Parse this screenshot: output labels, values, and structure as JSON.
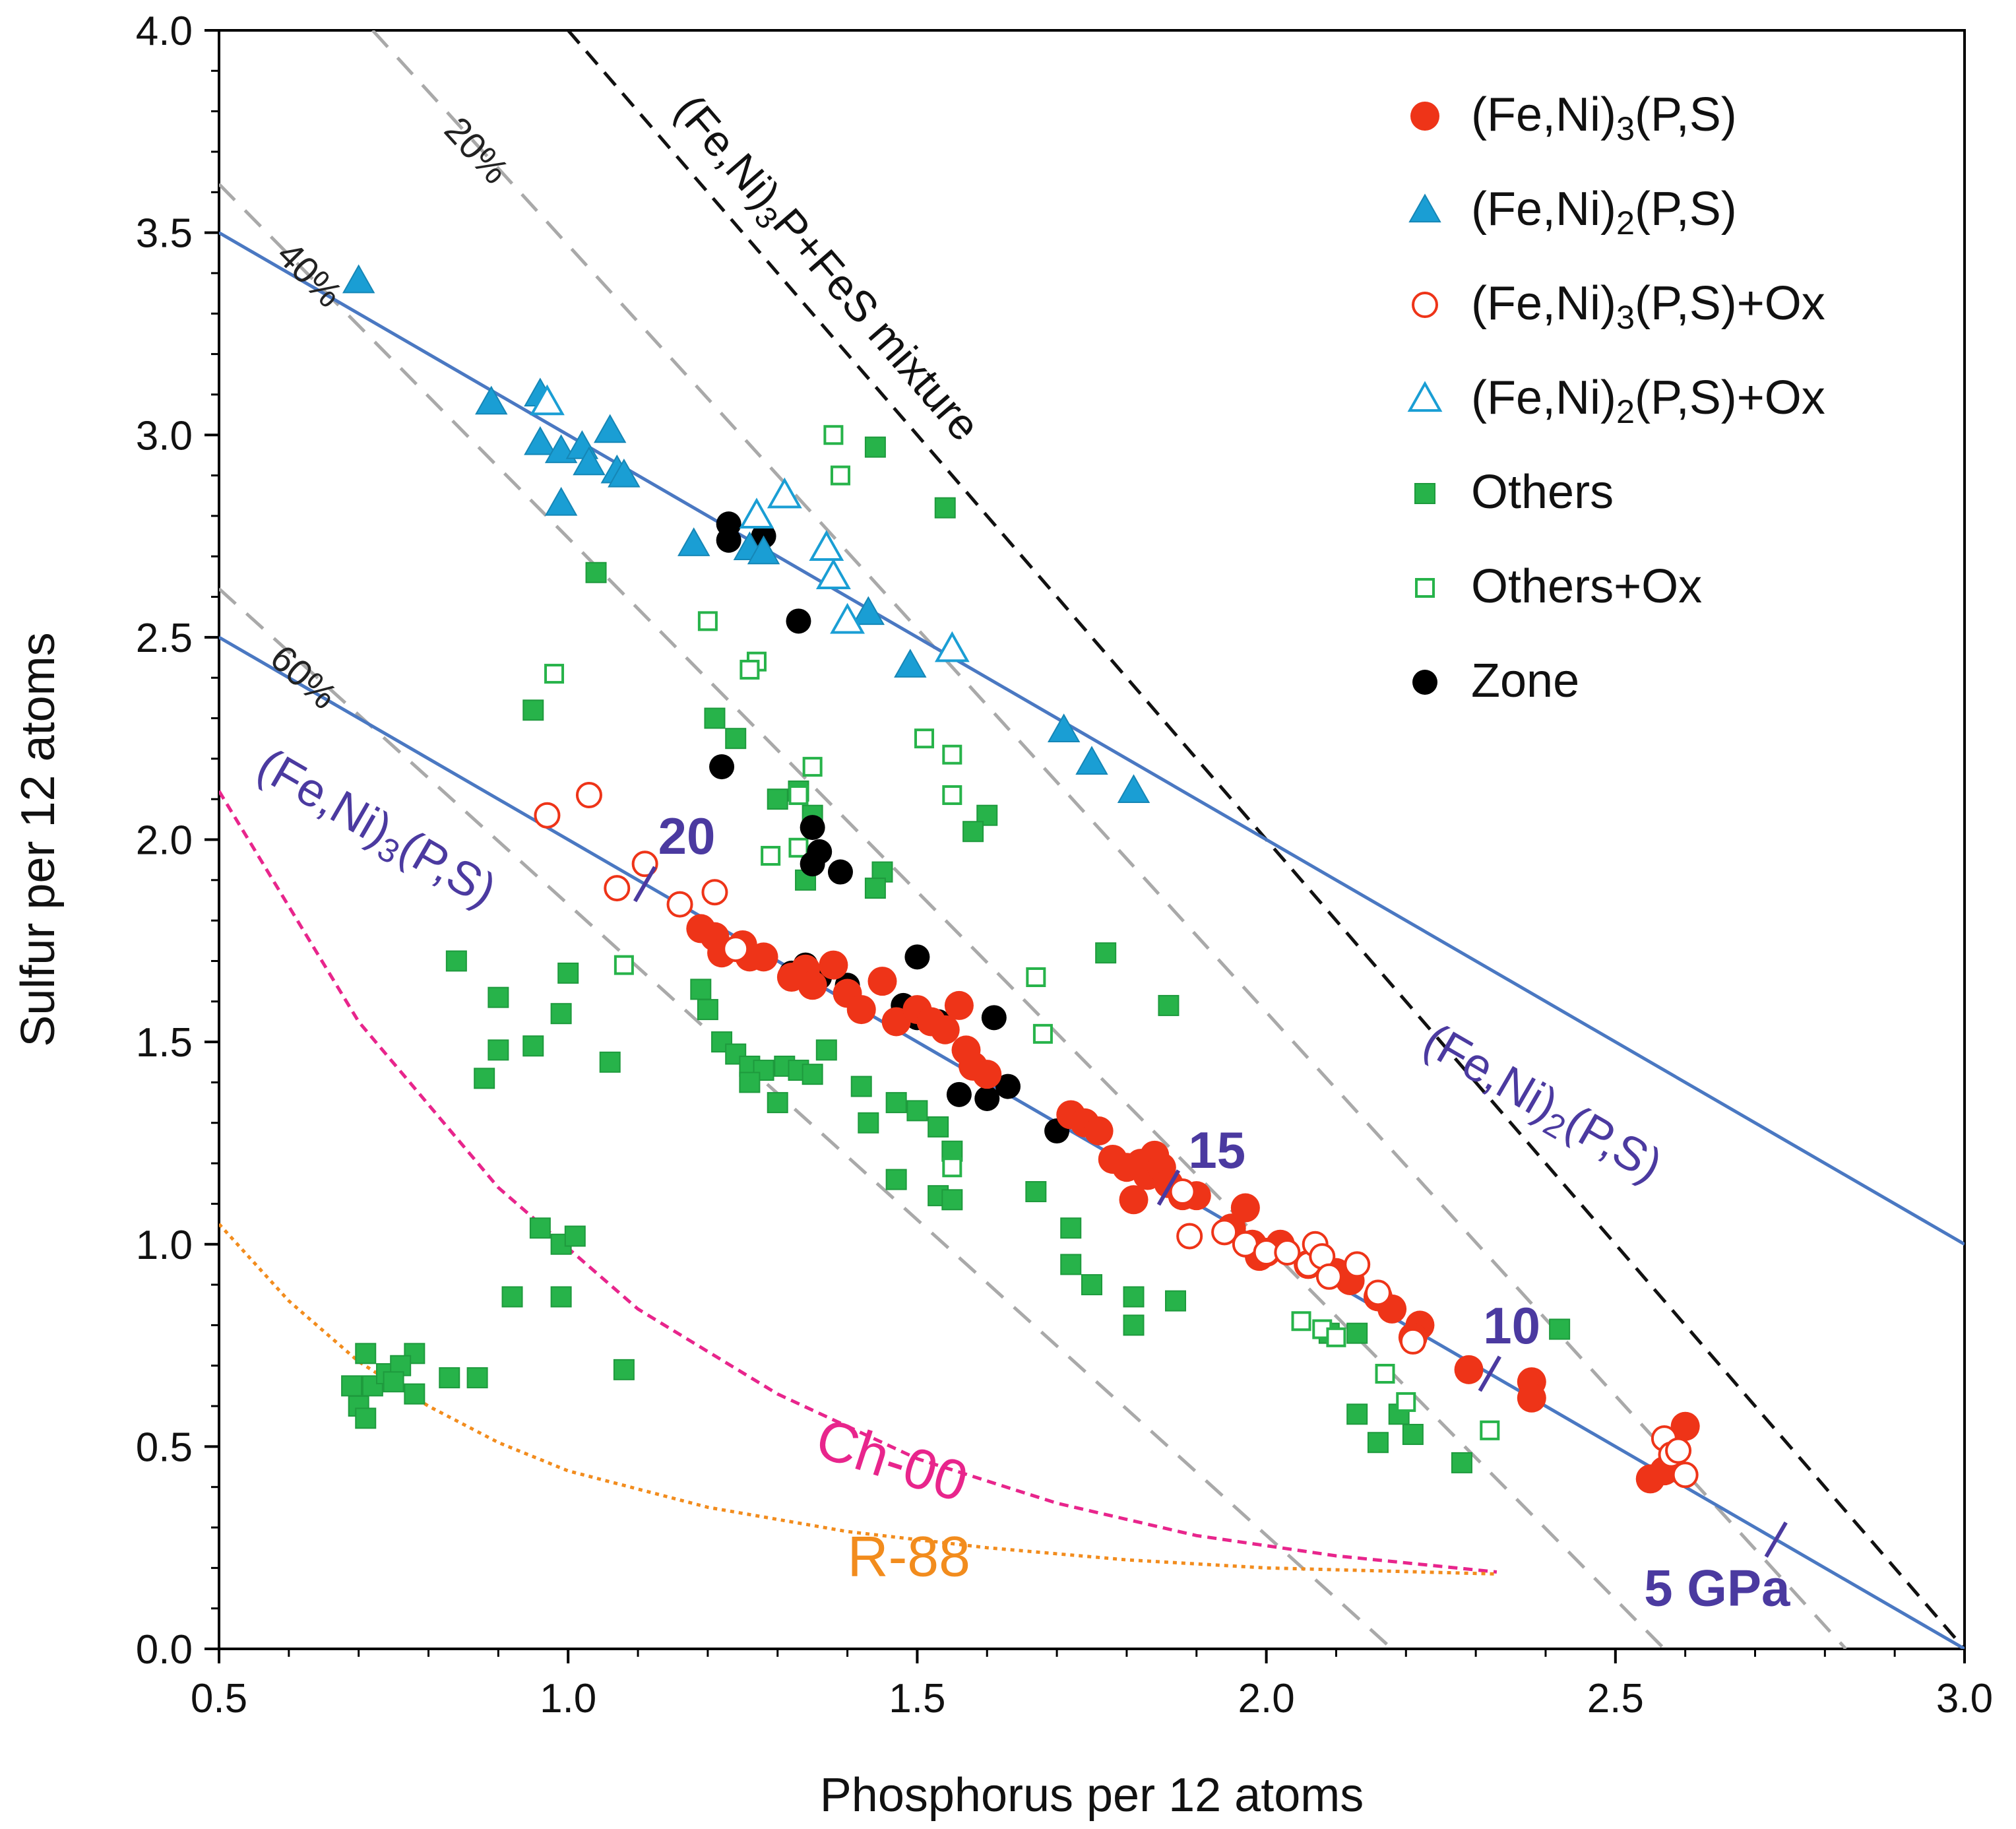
{
  "chart_data": {
    "type": "scatter",
    "xlabel": "Phosphorus per 12 atoms",
    "ylabel": "Sulfur per 12 atoms",
    "xlim": [
      0.5,
      3.0
    ],
    "ylim": [
      0.0,
      4.0
    ],
    "x_ticks": [
      "0.5",
      "1.0",
      "1.5",
      "2.0",
      "2.5",
      "3.0"
    ],
    "y_ticks": [
      "0.0",
      "0.5",
      "1.0",
      "1.5",
      "2.0",
      "2.5",
      "3.0",
      "3.5",
      "4.0"
    ],
    "legend_position": "top-right",
    "legend": [
      {
        "key": "fe3_filled",
        "base": "(Fe,Ni)",
        "sub": "3",
        "rest": "(P,S)"
      },
      {
        "key": "fe2_filled",
        "base": "(Fe,Ni)",
        "sub": "2",
        "rest": "(P,S)"
      },
      {
        "key": "fe3_open",
        "base": "(Fe,Ni)",
        "sub": "3",
        "rest": "(P,S)+Ox"
      },
      {
        "key": "fe2_open",
        "base": "(Fe,Ni)",
        "sub": "2",
        "rest": "(P,S)+Ox"
      },
      {
        "key": "others_filled",
        "base": "Others",
        "sub": "",
        "rest": ""
      },
      {
        "key": "others_open",
        "base": "Others+Ox",
        "sub": "",
        "rest": ""
      },
      {
        "key": "zone",
        "base": "Zone",
        "sub": "",
        "rest": ""
      }
    ],
    "colors": {
      "fe3": "#ee3418",
      "fe2": "#1a9ed4",
      "others": "#27b34a",
      "zone": "#000000",
      "reference_line": "#4a78c2",
      "dashed_gray": "#a9a9a9",
      "mixture_line": "#111111",
      "ch00": "#e8258c",
      "r88": "#f28c1d",
      "annotation": "#4b3aa0"
    },
    "reference_lines": {
      "fe2_ps": {
        "from": [
          0.5,
          3.5
        ],
        "to": [
          3.0,
          1.0
        ],
        "label_base": "(Fe,Ni)",
        "label_sub": "2",
        "label_rest": "(P,S)"
      },
      "fe3_ps": {
        "from": [
          0.5,
          2.5
        ],
        "to": [
          3.0,
          0.0
        ],
        "label_base": "(Fe,Ni)",
        "label_sub": "3",
        "label_rest": "(P,S)"
      },
      "mixture": {
        "from": [
          1.0,
          4.0
        ],
        "to": [
          3.0,
          0.0
        ],
        "label_base": "(Fe,Ni)",
        "label_sub": "3",
        "label_rest": "P+FeS mixture"
      }
    },
    "dashed_percent_lines": [
      {
        "label": "20%",
        "from": [
          0.72,
          4.0
        ],
        "to": [
          2.83,
          0.0
        ]
      },
      {
        "label": "40%",
        "from": [
          0.5,
          3.62
        ],
        "to": [
          2.57,
          0.0
        ]
      },
      {
        "label": "60%",
        "from": [
          0.5,
          2.62
        ],
        "to": [
          2.18,
          0.0
        ]
      }
    ],
    "pressure_ticks": [
      {
        "label": "20",
        "x": 1.11,
        "y": 1.89
      },
      {
        "label": "15",
        "x": 1.86,
        "y": 1.14
      },
      {
        "label": "10",
        "x": 2.32,
        "y": 0.68
      },
      {
        "label": "5 GPa",
        "x": 2.73,
        "y": 0.27
      }
    ],
    "curves": [
      {
        "name": "Ch-00",
        "points": [
          [
            0.5,
            2.12
          ],
          [
            0.7,
            1.55
          ],
          [
            0.9,
            1.14
          ],
          [
            1.1,
            0.84
          ],
          [
            1.3,
            0.63
          ],
          [
            1.5,
            0.47
          ],
          [
            1.7,
            0.36
          ],
          [
            1.9,
            0.28
          ],
          [
            2.1,
            0.23
          ],
          [
            2.33,
            0.19
          ]
        ]
      },
      {
        "name": "R-88",
        "points": [
          [
            0.5,
            1.05
          ],
          [
            0.6,
            0.86
          ],
          [
            0.7,
            0.71
          ],
          [
            0.8,
            0.6
          ],
          [
            0.9,
            0.51
          ],
          [
            1.0,
            0.44
          ],
          [
            1.2,
            0.35
          ],
          [
            1.4,
            0.29
          ],
          [
            1.6,
            0.25
          ],
          [
            1.8,
            0.22
          ],
          [
            2.0,
            0.2
          ],
          [
            2.33,
            0.185
          ]
        ]
      }
    ],
    "series": [
      {
        "name": "(Fe,Ni)3(P,S)",
        "marker": "circle-filled",
        "points": [
          [
            1.19,
            1.78
          ],
          [
            1.21,
            1.76
          ],
          [
            1.22,
            1.72
          ],
          [
            1.25,
            1.74
          ],
          [
            1.26,
            1.71
          ],
          [
            1.28,
            1.71
          ],
          [
            1.32,
            1.66
          ],
          [
            1.34,
            1.68
          ],
          [
            1.35,
            1.64
          ],
          [
            1.38,
            1.69
          ],
          [
            1.4,
            1.62
          ],
          [
            1.42,
            1.58
          ],
          [
            1.45,
            1.65
          ],
          [
            1.47,
            1.55
          ],
          [
            1.5,
            1.58
          ],
          [
            1.52,
            1.55
          ],
          [
            1.54,
            1.53
          ],
          [
            1.56,
            1.59
          ],
          [
            1.57,
            1.48
          ],
          [
            1.58,
            1.44
          ],
          [
            1.6,
            1.42
          ],
          [
            1.72,
            1.32
          ],
          [
            1.74,
            1.3
          ],
          [
            1.76,
            1.28
          ],
          [
            1.78,
            1.21
          ],
          [
            1.8,
            1.19
          ],
          [
            1.81,
            1.11
          ],
          [
            1.82,
            1.2
          ],
          [
            1.83,
            1.17
          ],
          [
            1.84,
            1.22
          ],
          [
            1.85,
            1.19
          ],
          [
            1.86,
            1.15
          ],
          [
            1.88,
            1.12
          ],
          [
            1.9,
            1.12
          ],
          [
            1.95,
            1.04
          ],
          [
            1.97,
            1.09
          ],
          [
            1.98,
            1.0
          ],
          [
            1.99,
            0.97
          ],
          [
            2.0,
            0.98
          ],
          [
            2.02,
            1.0
          ],
          [
            2.06,
            0.95
          ],
          [
            2.1,
            0.93
          ],
          [
            2.12,
            0.91
          ],
          [
            2.16,
            0.87
          ],
          [
            2.18,
            0.84
          ],
          [
            2.22,
            0.8
          ],
          [
            2.21,
            0.77
          ],
          [
            2.29,
            0.69
          ],
          [
            2.38,
            0.66
          ],
          [
            2.38,
            0.62
          ],
          [
            2.55,
            0.42
          ],
          [
            2.57,
            0.44
          ],
          [
            2.6,
            0.55
          ]
        ]
      },
      {
        "name": "(Fe,Ni)2(P,S)",
        "marker": "triangle-filled",
        "points": [
          [
            0.7,
            3.38
          ],
          [
            0.89,
            3.08
          ],
          [
            0.96,
            3.1
          ],
          [
            0.96,
            2.98
          ],
          [
            0.99,
            2.96
          ],
          [
            1.02,
            2.97
          ],
          [
            1.03,
            2.93
          ],
          [
            1.06,
            3.01
          ],
          [
            1.07,
            2.91
          ],
          [
            1.08,
            2.9
          ],
          [
            0.99,
            2.83
          ],
          [
            1.18,
            2.73
          ],
          [
            1.26,
            2.72
          ],
          [
            1.28,
            2.71
          ],
          [
            1.43,
            2.56
          ],
          [
            1.49,
            2.43
          ],
          [
            1.71,
            2.27
          ],
          [
            1.75,
            2.19
          ],
          [
            1.81,
            2.12
          ]
        ]
      },
      {
        "name": "(Fe,Ni)3(P,S)+Ox",
        "marker": "circle-open",
        "points": [
          [
            0.97,
            2.06
          ],
          [
            1.03,
            2.11
          ],
          [
            1.07,
            1.88
          ],
          [
            1.11,
            1.94
          ],
          [
            1.16,
            1.84
          ],
          [
            1.21,
            1.87
          ],
          [
            1.24,
            1.73
          ],
          [
            1.88,
            1.13
          ],
          [
            1.89,
            1.02
          ],
          [
            1.94,
            1.03
          ],
          [
            1.97,
            1.0
          ],
          [
            2.0,
            0.98
          ],
          [
            2.03,
            0.98
          ],
          [
            2.06,
            0.95
          ],
          [
            2.07,
            1.0
          ],
          [
            2.08,
            0.97
          ],
          [
            2.09,
            0.92
          ],
          [
            2.13,
            0.95
          ],
          [
            2.16,
            0.88
          ],
          [
            2.21,
            0.76
          ],
          [
            2.57,
            0.52
          ],
          [
            2.58,
            0.48
          ],
          [
            2.59,
            0.49
          ],
          [
            2.6,
            0.43
          ]
        ]
      },
      {
        "name": "(Fe,Ni)2(P,S)+Ox",
        "marker": "triangle-open",
        "points": [
          [
            0.97,
            3.08
          ],
          [
            1.27,
            2.8
          ],
          [
            1.31,
            2.85
          ],
          [
            1.37,
            2.72
          ],
          [
            1.38,
            2.65
          ],
          [
            1.4,
            2.54
          ],
          [
            1.55,
            2.47
          ]
        ]
      },
      {
        "name": "Others",
        "marker": "square-filled",
        "points": [
          [
            1.44,
            2.97
          ],
          [
            1.54,
            2.82
          ],
          [
            1.04,
            2.66
          ],
          [
            0.95,
            2.32
          ],
          [
            1.21,
            2.3
          ],
          [
            1.24,
            2.25
          ],
          [
            1.3,
            2.1
          ],
          [
            1.33,
            2.12
          ],
          [
            1.35,
            2.06
          ],
          [
            1.6,
            2.06
          ],
          [
            1.58,
            2.02
          ],
          [
            1.34,
            1.9
          ],
          [
            1.45,
            1.92
          ],
          [
            1.44,
            1.88
          ],
          [
            0.84,
            1.7
          ],
          [
            1.77,
            1.72
          ],
          [
            1.0,
            1.67
          ],
          [
            0.9,
            1.61
          ],
          [
            1.19,
            1.63
          ],
          [
            1.2,
            1.58
          ],
          [
            0.99,
            1.57
          ],
          [
            1.86,
            1.59
          ],
          [
            0.95,
            1.49
          ],
          [
            0.9,
            1.48
          ],
          [
            1.06,
            1.45
          ],
          [
            1.22,
            1.5
          ],
          [
            1.24,
            1.47
          ],
          [
            1.26,
            1.44
          ],
          [
            1.28,
            1.43
          ],
          [
            1.31,
            1.44
          ],
          [
            1.33,
            1.43
          ],
          [
            1.35,
            1.42
          ],
          [
            1.37,
            1.48
          ],
          [
            0.88,
            1.41
          ],
          [
            1.26,
            1.4
          ],
          [
            1.42,
            1.39
          ],
          [
            1.47,
            1.35
          ],
          [
            1.3,
            1.35
          ],
          [
            1.5,
            1.33
          ],
          [
            1.53,
            1.29
          ],
          [
            1.43,
            1.3
          ],
          [
            1.55,
            1.23
          ],
          [
            1.47,
            1.16
          ],
          [
            1.53,
            1.12
          ],
          [
            1.55,
            1.11
          ],
          [
            1.67,
            1.13
          ],
          [
            1.72,
            1.04
          ],
          [
            0.96,
            1.04
          ],
          [
            0.99,
            1.0
          ],
          [
            1.01,
            1.02
          ],
          [
            1.72,
            0.95
          ],
          [
            1.75,
            0.9
          ],
          [
            0.92,
            0.87
          ],
          [
            0.99,
            0.87
          ],
          [
            1.81,
            0.87
          ],
          [
            1.87,
            0.86
          ],
          [
            1.81,
            0.8
          ],
          [
            2.09,
            0.78
          ],
          [
            2.13,
            0.78
          ],
          [
            2.42,
            0.79
          ],
          [
            0.71,
            0.73
          ],
          [
            0.78,
            0.73
          ],
          [
            1.08,
            0.69
          ],
          [
            0.83,
            0.67
          ],
          [
            0.87,
            0.67
          ],
          [
            0.69,
            0.65
          ],
          [
            0.72,
            0.65
          ],
          [
            0.74,
            0.68
          ],
          [
            0.76,
            0.7
          ],
          [
            0.7,
            0.6
          ],
          [
            0.71,
            0.57
          ],
          [
            0.75,
            0.66
          ],
          [
            0.78,
            0.63
          ],
          [
            2.13,
            0.58
          ],
          [
            2.19,
            0.58
          ],
          [
            2.21,
            0.53
          ],
          [
            2.16,
            0.51
          ],
          [
            2.28,
            0.46
          ]
        ]
      },
      {
        "name": "Others+Ox",
        "marker": "square-open",
        "points": [
          [
            1.38,
            3.0
          ],
          [
            1.39,
            2.9
          ],
          [
            1.2,
            2.54
          ],
          [
            1.27,
            2.44
          ],
          [
            1.26,
            2.42
          ],
          [
            0.98,
            2.41
          ],
          [
            1.51,
            2.25
          ],
          [
            1.55,
            2.21
          ],
          [
            1.35,
            2.18
          ],
          [
            1.55,
            2.11
          ],
          [
            1.33,
            2.11
          ],
          [
            1.33,
            1.98
          ],
          [
            1.29,
            1.96
          ],
          [
            1.08,
            1.69
          ],
          [
            1.67,
            1.66
          ],
          [
            1.68,
            1.52
          ],
          [
            1.55,
            1.19
          ],
          [
            2.05,
            0.81
          ],
          [
            2.08,
            0.79
          ],
          [
            2.1,
            0.77
          ],
          [
            2.17,
            0.68
          ],
          [
            2.2,
            0.61
          ],
          [
            2.32,
            0.54
          ]
        ]
      },
      {
        "name": "Zone",
        "marker": "circle-black",
        "points": [
          [
            1.23,
            2.78
          ],
          [
            1.23,
            2.74
          ],
          [
            1.28,
            2.75
          ],
          [
            1.33,
            2.54
          ],
          [
            1.22,
            2.18
          ],
          [
            1.35,
            2.03
          ],
          [
            1.36,
            1.97
          ],
          [
            1.35,
            1.94
          ],
          [
            1.39,
            1.92
          ],
          [
            1.5,
            1.71
          ],
          [
            1.32,
            1.67
          ],
          [
            1.34,
            1.69
          ],
          [
            1.36,
            1.66
          ],
          [
            1.4,
            1.64
          ],
          [
            1.48,
            1.59
          ],
          [
            1.47,
            1.55
          ],
          [
            1.5,
            1.56
          ],
          [
            1.53,
            1.55
          ],
          [
            1.61,
            1.56
          ],
          [
            1.56,
            1.37
          ],
          [
            1.6,
            1.36
          ],
          [
            1.63,
            1.39
          ],
          [
            1.7,
            1.28
          ]
        ]
      }
    ]
  }
}
